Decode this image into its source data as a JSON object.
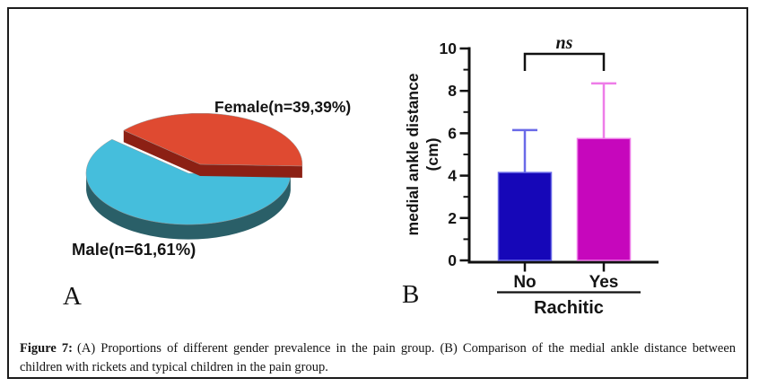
{
  "panels": {
    "a_label": "A",
    "b_label": "B"
  },
  "panel_b_axis": {
    "ylabel_line1": "medial ankle distance",
    "ylabel_line2": "(cm)"
  },
  "caption": {
    "label": "Figure 7:",
    "text": "(A) Proportions of different gender prevalence in the pain group. (B) Comparison of the medial ankle distance between children with rickets and typical children in the pain group."
  },
  "chart_data": [
    {
      "type": "pie",
      "style": "3d-exploded",
      "labels": [
        "Male(n=61,61%)",
        "Female(n=39,39%)"
      ],
      "values": [
        61.61,
        39.39
      ],
      "unit": "%",
      "colors": [
        "#45BEDC",
        "#DF4A31"
      ],
      "side_colors": [
        "#2A5F68",
        "#8C2014"
      ],
      "exploded_slice": "Female(n=39,39%)",
      "legend_position": "labels-beside-slices"
    },
    {
      "type": "bar",
      "title": "",
      "xlabel": "Rachitic",
      "ylabel": "medial ankle distance (cm)",
      "categories": [
        "No",
        "Yes"
      ],
      "values": [
        4.15,
        5.75
      ],
      "error_bar_tops": [
        6.15,
        8.35
      ],
      "ylim": [
        0,
        10
      ],
      "yticks": [
        0,
        2,
        4,
        6,
        8,
        10
      ],
      "minor_yticks": [
        1,
        3,
        5,
        7,
        9
      ],
      "bar_colors": [
        "#1607B8",
        "#C607BC"
      ],
      "error_colors": [
        "#6A6AE8",
        "#EE7CE8"
      ],
      "axis_color": "#111111",
      "grid": false,
      "legend": "none",
      "significance": {
        "label": "ns",
        "between": [
          "No",
          "Yes"
        ]
      }
    }
  ]
}
